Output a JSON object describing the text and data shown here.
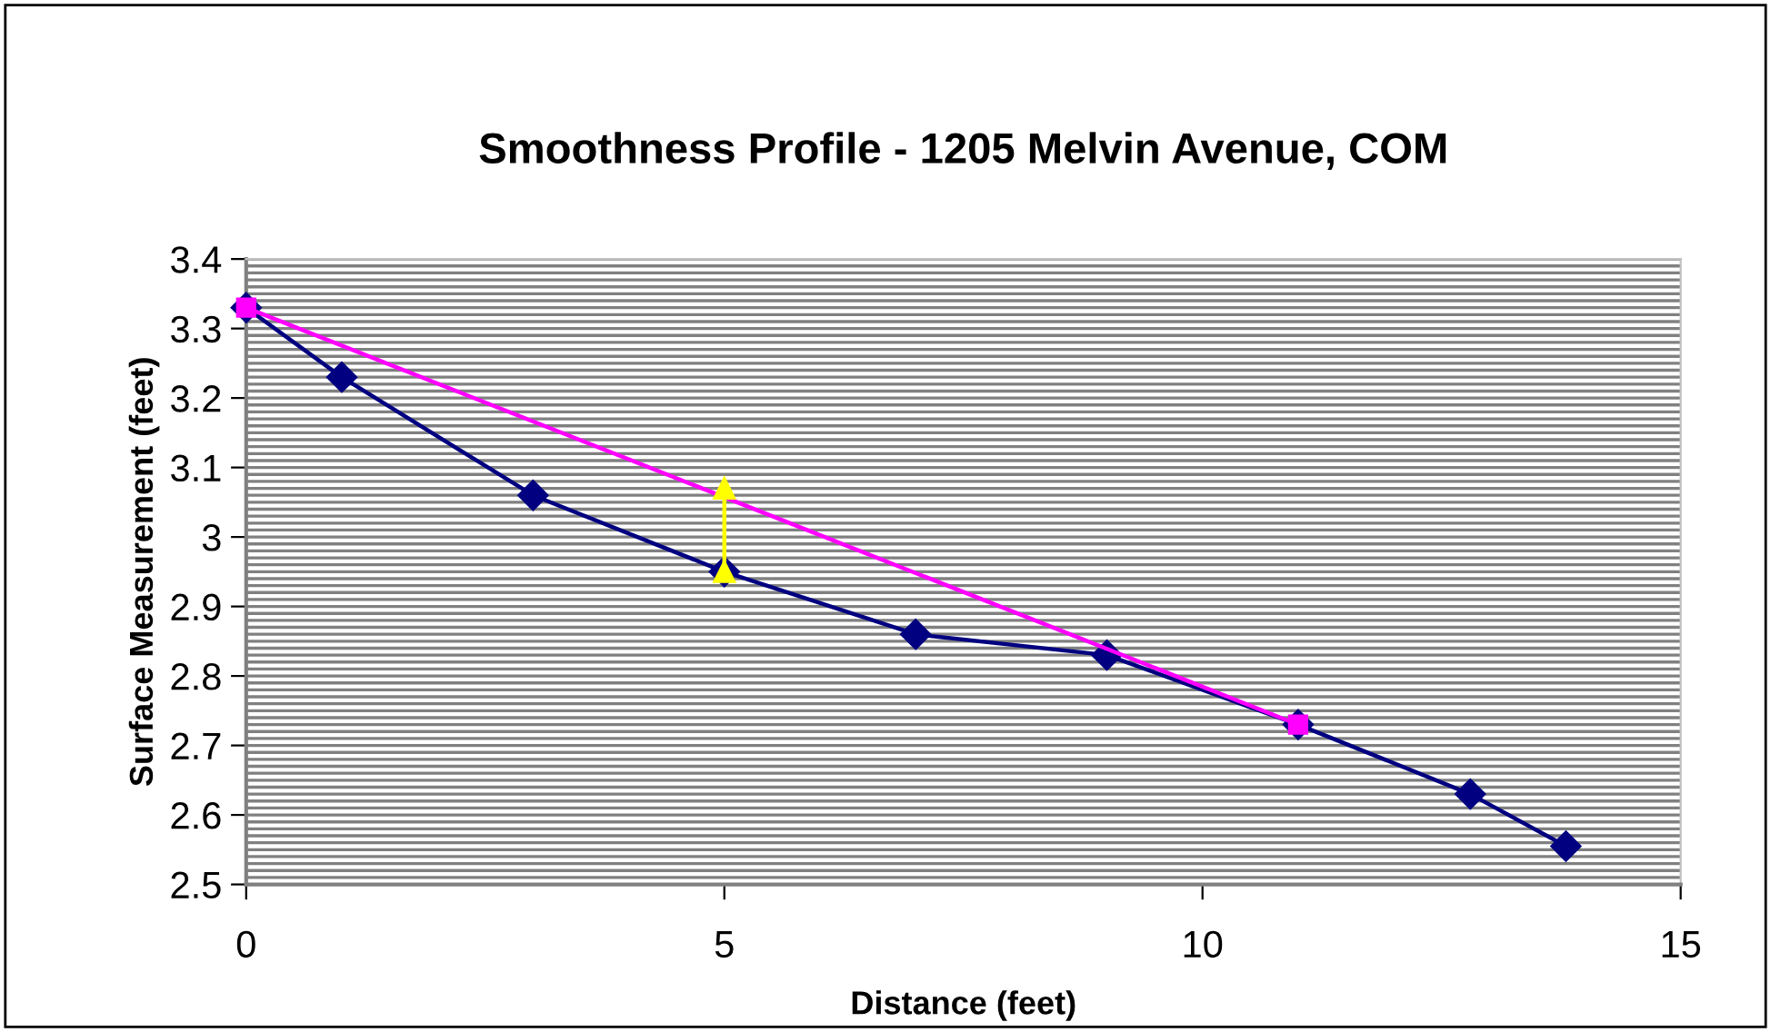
{
  "chart_data": {
    "type": "line",
    "title": "Smoothness Profile - 1205 Melvin Avenue, COM",
    "xlabel": "Distance (feet)",
    "ylabel": "Surface Measurement (feet)",
    "xlim": [
      0,
      15
    ],
    "xticks": [
      0,
      5,
      10,
      15
    ],
    "ylim": [
      2.5,
      3.4
    ],
    "yticks": [
      2.5,
      {
        "value": 2.51,
        "label": null
      },
      {
        "value": 2.52,
        "label": null
      },
      {
        "value": 2.53,
        "label": null
      },
      {
        "value": 2.54,
        "label": null
      },
      {
        "value": 2.55,
        "label": null
      },
      {
        "value": 2.56,
        "label": null
      },
      {
        "value": 2.57,
        "label": null
      },
      {
        "value": 2.58,
        "label": null
      },
      {
        "value": 2.59,
        "label": null
      },
      2.6,
      {
        "value": 2.61,
        "label": null
      },
      {
        "value": 2.62,
        "label": null
      },
      {
        "value": 2.63,
        "label": null
      },
      {
        "value": 2.64,
        "label": null
      },
      {
        "value": 2.65,
        "label": null
      },
      {
        "value": 2.66,
        "label": null
      },
      {
        "value": 2.67,
        "label": null
      },
      {
        "value": 2.68,
        "label": null
      },
      {
        "value": 2.69,
        "label": null
      },
      2.7,
      {
        "value": 2.71,
        "label": null
      },
      {
        "value": 2.72,
        "label": null
      },
      {
        "value": 2.73,
        "label": null
      },
      {
        "value": 2.74,
        "label": null
      },
      {
        "value": 2.75,
        "label": null
      },
      {
        "value": 2.76,
        "label": null
      },
      {
        "value": 2.77,
        "label": null
      },
      {
        "value": 2.78,
        "label": null
      },
      {
        "value": 2.79,
        "label": null
      },
      2.8,
      {
        "value": 2.81,
        "label": null
      },
      {
        "value": 2.82,
        "label": null
      },
      {
        "value": 2.83,
        "label": null
      },
      {
        "value": 2.84,
        "label": null
      },
      {
        "value": 2.85,
        "label": null
      },
      {
        "value": 2.86,
        "label": null
      },
      {
        "value": 2.87,
        "label": null
      },
      {
        "value": 2.88,
        "label": null
      },
      {
        "value": 2.89,
        "label": null
      },
      2.9,
      {
        "value": 2.91,
        "label": null
      },
      {
        "value": 2.92,
        "label": null
      },
      {
        "value": 2.93,
        "label": null
      },
      {
        "value": 2.94,
        "label": null
      },
      {
        "value": 2.95,
        "label": null
      },
      {
        "value": 2.96,
        "label": null
      },
      {
        "value": 2.97,
        "label": null
      },
      {
        "value": 2.98,
        "label": null
      },
      {
        "value": 2.99,
        "label": null
      },
      {
        "value": 3,
        "label": "3"
      },
      {
        "value": 3.01,
        "label": null
      },
      {
        "value": 3.02,
        "label": null
      },
      {
        "value": 3.03,
        "label": null
      },
      {
        "value": 3.04,
        "label": null
      },
      {
        "value": 3.05,
        "label": null
      },
      {
        "value": 3.06,
        "label": null
      },
      {
        "value": 3.07,
        "label": null
      },
      {
        "value": 3.08,
        "label": null
      },
      {
        "value": 3.09,
        "label": null
      },
      3.1,
      {
        "value": 3.11,
        "label": null
      },
      {
        "value": 3.12,
        "label": null
      },
      {
        "value": 3.13,
        "label": null
      },
      {
        "value": 3.14,
        "label": null
      },
      {
        "value": 3.15,
        "label": null
      },
      {
        "value": 3.16,
        "label": null
      },
      {
        "value": 3.17,
        "label": null
      },
      {
        "value": 3.18,
        "label": null
      },
      {
        "value": 3.19,
        "label": null
      },
      3.2,
      {
        "value": 3.21,
        "label": null
      },
      {
        "value": 3.22,
        "label": null
      },
      {
        "value": 3.23,
        "label": null
      },
      {
        "value": 3.24,
        "label": null
      },
      {
        "value": 3.25,
        "label": null
      },
      {
        "value": 3.26,
        "label": null
      },
      {
        "value": 3.27,
        "label": null
      },
      {
        "value": 3.28,
        "label": null
      },
      {
        "value": 3.29,
        "label": null
      },
      3.3,
      {
        "value": 3.31,
        "label": null
      },
      {
        "value": 3.32,
        "label": null
      },
      {
        "value": 3.33,
        "label": null
      },
      {
        "value": 3.34,
        "label": null
      },
      {
        "value": 3.35,
        "label": null
      },
      {
        "value": 3.36,
        "label": null
      },
      {
        "value": 3.37,
        "label": null
      },
      {
        "value": 3.38,
        "label": null
      },
      {
        "value": 3.39,
        "label": null
      },
      3.4
    ],
    "grid": "y",
    "series": [
      {
        "color": "#000080",
        "marker": "diamond",
        "x": [
          0,
          1,
          3,
          5,
          7,
          9,
          11,
          12.8,
          13.8
        ],
        "values": [
          3.33,
          3.23,
          3.06,
          2.95,
          2.86,
          2.83,
          2.73,
          2.63,
          2.555
        ]
      },
      {
        "color": "#ff00ff",
        "marker": "square",
        "x": [
          0,
          11
        ],
        "values": [
          3.33,
          2.73
        ]
      },
      {
        "color": "#ffff00",
        "marker": "triangle",
        "x": [
          5,
          5
        ],
        "values": [
          2.95,
          3.07
        ]
      }
    ]
  }
}
